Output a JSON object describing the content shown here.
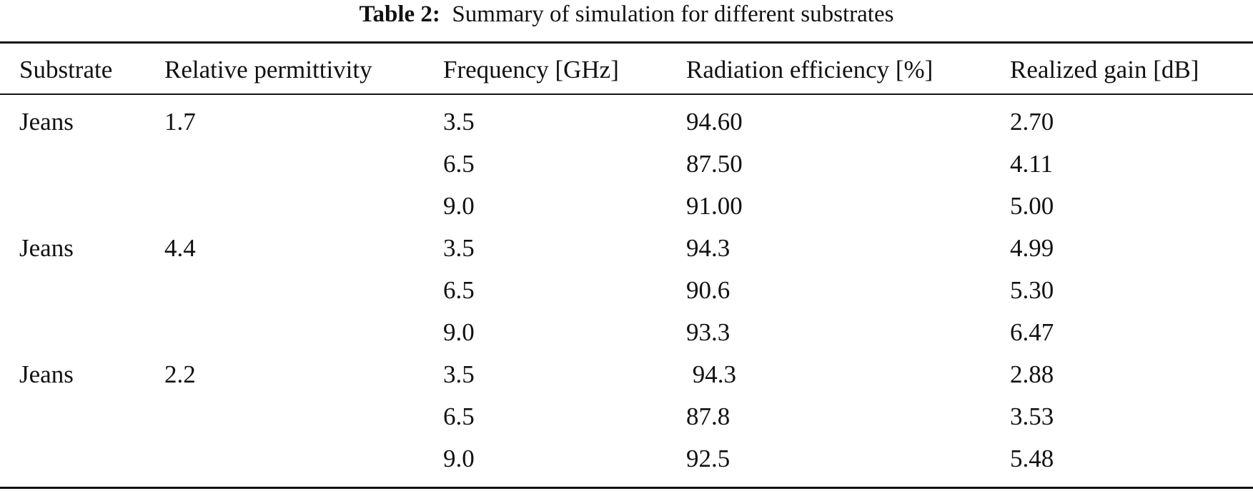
{
  "caption": {
    "label": "Table 2:",
    "text": "Summary of simulation for different substrates"
  },
  "table": {
    "headers": [
      "Substrate",
      "Relative permittivity",
      "Frequency [GHz]",
      "Radiation efficiency [%]",
      "Realized gain [dB]"
    ],
    "rows": [
      [
        "Jeans",
        "1.7",
        "3.5",
        "94.60",
        "2.70"
      ],
      [
        "",
        "",
        "6.5",
        "87.50",
        "4.11"
      ],
      [
        "",
        "",
        "9.0",
        "91.00",
        "5.00"
      ],
      [
        "Jeans",
        "4.4",
        "3.5",
        "94.3",
        "4.99"
      ],
      [
        "",
        "",
        "6.5",
        "90.6",
        "5.30"
      ],
      [
        "",
        "",
        "9.0",
        "93.3",
        "6.47"
      ],
      [
        "Jeans",
        "2.2",
        "3.5",
        " 94.3",
        "2.88"
      ],
      [
        "",
        "",
        "6.5",
        "87.8",
        "3.53"
      ],
      [
        "",
        "",
        "9.0",
        "92.5",
        "5.48"
      ]
    ]
  }
}
